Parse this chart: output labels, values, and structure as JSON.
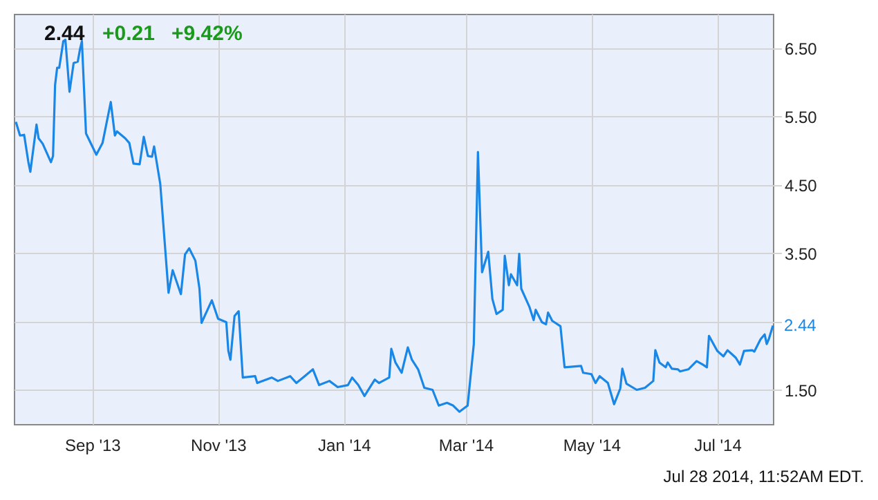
{
  "chart_data": {
    "type": "line",
    "annotations": [
      "2.44",
      "+0.21",
      "+9.42%",
      {
        "text": "2.44",
        "x": "2014-07-28",
        "y": 2.44
      },
      "Jul 28 2014, 11:52AM EDT."
    ],
    "x": [
      "2013-07-26",
      "2013-07-28",
      "2013-07-30",
      "2013-08-01",
      "2013-08-02",
      "2013-08-05",
      "2013-08-06",
      "2013-08-08",
      "2013-08-12",
      "2013-08-13",
      "2013-08-14",
      "2013-08-15",
      "2013-08-16",
      "2013-08-18",
      "2013-08-19",
      "2013-08-21",
      "2013-08-23",
      "2013-08-25",
      "2013-08-26",
      "2013-08-27",
      "2013-08-29",
      "2013-09-03",
      "2013-09-06",
      "2013-09-10",
      "2013-09-12",
      "2013-09-13",
      "2013-09-17",
      "2013-09-19",
      "2013-09-21",
      "2013-09-24",
      "2013-09-26",
      "2013-09-28",
      "2013-09-30",
      "2013-10-01",
      "2013-10-04",
      "2013-10-08",
      "2013-10-10",
      "2013-10-14",
      "2013-10-16",
      "2013-10-18",
      "2013-10-21",
      "2013-10-23",
      "2013-10-24",
      "2013-10-29",
      "2013-11-01",
      "2013-11-05",
      "2013-11-06",
      "2013-11-07",
      "2013-11-09",
      "2013-11-11",
      "2013-11-13",
      "2013-11-19",
      "2013-11-20",
      "2013-11-27",
      "2013-11-30",
      "2013-12-06",
      "2013-12-09",
      "2013-12-13",
      "2013-12-17",
      "2013-12-20",
      "2013-12-25",
      "2013-12-29",
      "2014-01-03",
      "2014-01-05",
      "2014-01-08",
      "2014-01-11",
      "2014-01-16",
      "2014-01-18",
      "2014-01-23",
      "2014-01-24",
      "2014-01-26",
      "2014-01-29",
      "2014-02-01",
      "2014-02-03",
      "2014-02-06",
      "2014-02-09",
      "2014-02-13",
      "2014-02-16",
      "2014-02-20",
      "2014-02-23",
      "2014-02-26",
      "2014-03-02",
      "2014-03-05",
      "2014-03-07",
      "2014-03-09",
      "2014-03-12",
      "2014-03-14",
      "2014-03-16",
      "2014-03-19",
      "2014-03-20",
      "2014-03-22",
      "2014-03-23",
      "2014-03-26",
      "2014-03-27",
      "2014-03-28",
      "2014-04-01",
      "2014-04-03",
      "2014-04-04",
      "2014-04-07",
      "2014-04-09",
      "2014-04-10",
      "2014-04-12",
      "2014-04-16",
      "2014-04-18",
      "2014-04-26",
      "2014-04-27",
      "2014-05-01",
      "2014-05-03",
      "2014-05-05",
      "2014-05-09",
      "2014-05-12",
      "2014-05-15",
      "2014-05-16",
      "2014-05-18",
      "2014-05-23",
      "2014-05-27",
      "2014-05-31",
      "2014-06-01",
      "2014-06-03",
      "2014-06-06",
      "2014-06-07",
      "2014-06-09",
      "2014-06-12",
      "2014-06-13",
      "2014-06-17",
      "2014-06-21",
      "2014-06-24",
      "2014-06-26",
      "2014-06-27",
      "2014-07-01",
      "2014-07-04",
      "2014-07-06",
      "2014-07-10",
      "2014-07-12",
      "2014-07-14",
      "2014-07-18",
      "2014-07-19",
      "2014-07-22",
      "2014-07-24",
      "2014-07-25",
      "2014-07-26",
      "2014-07-28"
    ],
    "series": [
      {
        "color": "#1a87e6",
        "values": [
          5.42,
          5.22,
          5.23,
          4.84,
          4.69,
          5.38,
          5.18,
          5.1,
          4.83,
          4.92,
          5.96,
          6.21,
          6.21,
          6.6,
          6.62,
          5.86,
          6.28,
          6.3,
          6.47,
          6.6,
          5.25,
          4.94,
          5.11,
          5.71,
          5.22,
          5.28,
          5.18,
          5.11,
          4.81,
          4.8,
          5.2,
          4.92,
          4.91,
          5.06,
          4.51,
          2.92,
          3.25,
          2.9,
          3.48,
          3.57,
          3.39,
          2.98,
          2.48,
          2.81,
          2.54,
          2.49,
          2.07,
          1.94,
          2.58,
          2.65,
          1.68,
          1.7,
          1.6,
          1.68,
          1.63,
          1.7,
          1.6,
          1.7,
          1.8,
          1.57,
          1.63,
          1.54,
          1.57,
          1.68,
          1.57,
          1.41,
          1.65,
          1.6,
          1.68,
          2.1,
          1.9,
          1.75,
          2.12,
          1.94,
          1.8,
          1.53,
          1.5,
          1.27,
          1.31,
          1.27,
          1.18,
          1.27,
          2.17,
          4.98,
          3.22,
          3.52,
          2.83,
          2.61,
          2.67,
          3.46,
          3.03,
          3.19,
          3.03,
          3.49,
          2.98,
          2.71,
          2.52,
          2.67,
          2.49,
          2.46,
          2.63,
          2.51,
          2.43,
          1.83,
          1.85,
          1.75,
          1.73,
          1.6,
          1.7,
          1.6,
          1.29,
          1.52,
          1.81,
          1.59,
          1.5,
          1.53,
          1.63,
          2.08,
          1.9,
          1.83,
          1.9,
          1.81,
          1.8,
          1.77,
          1.8,
          1.92,
          1.87,
          1.83,
          2.29,
          2.07,
          1.99,
          2.08,
          1.97,
          1.87,
          2.07,
          2.08,
          2.06,
          2.24,
          2.31,
          2.17,
          2.24,
          2.44
        ]
      }
    ],
    "xlim": [
      "2013-07-25",
      "2014-07-28"
    ],
    "xticks": [
      {
        "value": "2013-09-01",
        "label": "Sep '13"
      },
      {
        "value": "2013-11-01",
        "label": "Nov '13"
      },
      {
        "value": "2014-01-01",
        "label": "Jan '14"
      },
      {
        "value": "2014-03-01",
        "label": "Mar '14"
      },
      {
        "value": "2014-05-01",
        "label": "May '14"
      },
      {
        "value": "2014-07-01",
        "label": "Jul '14"
      }
    ],
    "ylim": [
      1.0,
      7.0
    ],
    "yticks": [
      {
        "value": 1.5,
        "label": "1.50"
      },
      {
        "value": 2.5,
        "label": null
      },
      {
        "value": 3.5,
        "label": "3.50"
      },
      {
        "value": 4.5,
        "label": "4.50"
      },
      {
        "value": 5.5,
        "label": "5.50"
      },
      {
        "value": 6.5,
        "label": "6.50"
      }
    ],
    "grid": true,
    "marker": "none",
    "line_style": "solid"
  }
}
